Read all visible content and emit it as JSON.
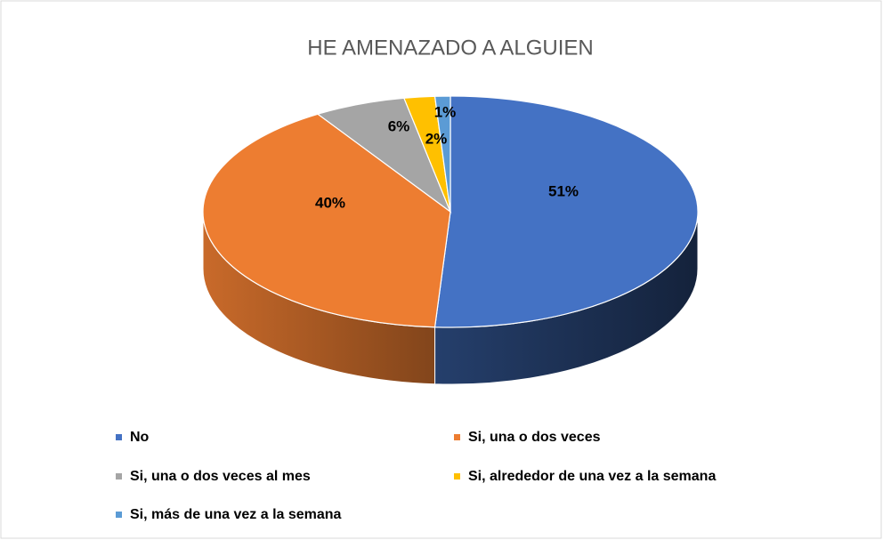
{
  "chart_data": {
    "type": "pie",
    "title": "HE AMENAZADO A ALGUIEN",
    "categories": [
      "No",
      "Si, una o dos veces",
      "Si, una o dos veces al mes",
      "Si, alrededor de una vez a la semana",
      "Si, más de una vez a la semana"
    ],
    "values": [
      51,
      40,
      6,
      2,
      1
    ],
    "value_labels": [
      "51%",
      "40%",
      "6%",
      "2%",
      "1%"
    ],
    "colors": [
      "#4472c4",
      "#ed7d31",
      "#a5a5a5",
      "#ffc000",
      "#5b9bd5"
    ],
    "legend": "bottom"
  }
}
